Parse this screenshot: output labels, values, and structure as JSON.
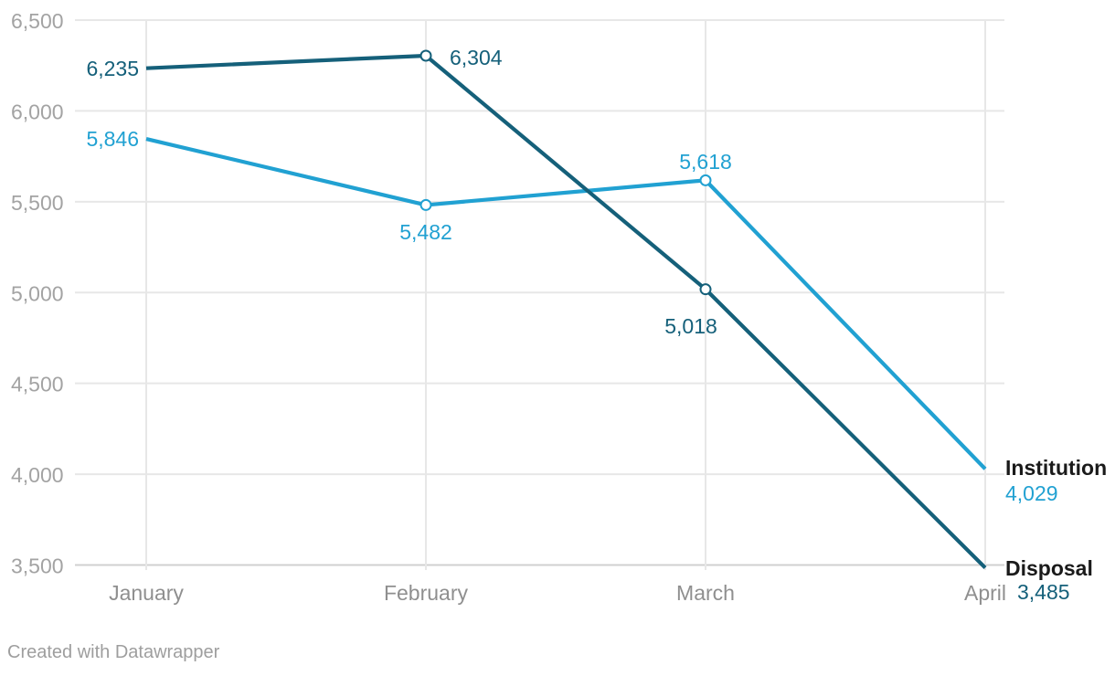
{
  "chart_data": {
    "type": "line",
    "title": "",
    "xlabel": "",
    "ylabel": "",
    "categories": [
      "January",
      "February",
      "March",
      "April"
    ],
    "series": [
      {
        "name": "Institution",
        "values": [
          5846,
          5482,
          5618,
          4029
        ],
        "labels": [
          "5,846",
          "5,482",
          "5,618",
          "4,029"
        ],
        "color": "#21a1d2",
        "marker_points": [
          "February",
          "March"
        ]
      },
      {
        "name": "Disposal",
        "values": [
          6235,
          6304,
          5018,
          3485
        ],
        "labels": [
          "6,235",
          "6,304",
          "5,018",
          "3,485"
        ],
        "color": "#15607a",
        "marker_points": [
          "February",
          "March"
        ]
      }
    ],
    "ylim": [
      3500,
      6500
    ],
    "ytick_interval": 500,
    "yticks": [
      "6,500",
      "6,000",
      "5,500",
      "5,000",
      "4,500",
      "4,000",
      "3,500"
    ],
    "grid": "on",
    "legend_position": "right of line ends, bold series names with final values beneath"
  },
  "footer": {
    "credit": "Created with Datawrapper"
  },
  "colors": {
    "background": "#ffffff",
    "gridline": "#e7e7e7",
    "baseline": "#d0d0d0",
    "ytick_label": "#a3a3a3",
    "xtick_label": "#8f8f8f",
    "series_label": "#1a1a1a",
    "credit": "#9e9e9e"
  }
}
